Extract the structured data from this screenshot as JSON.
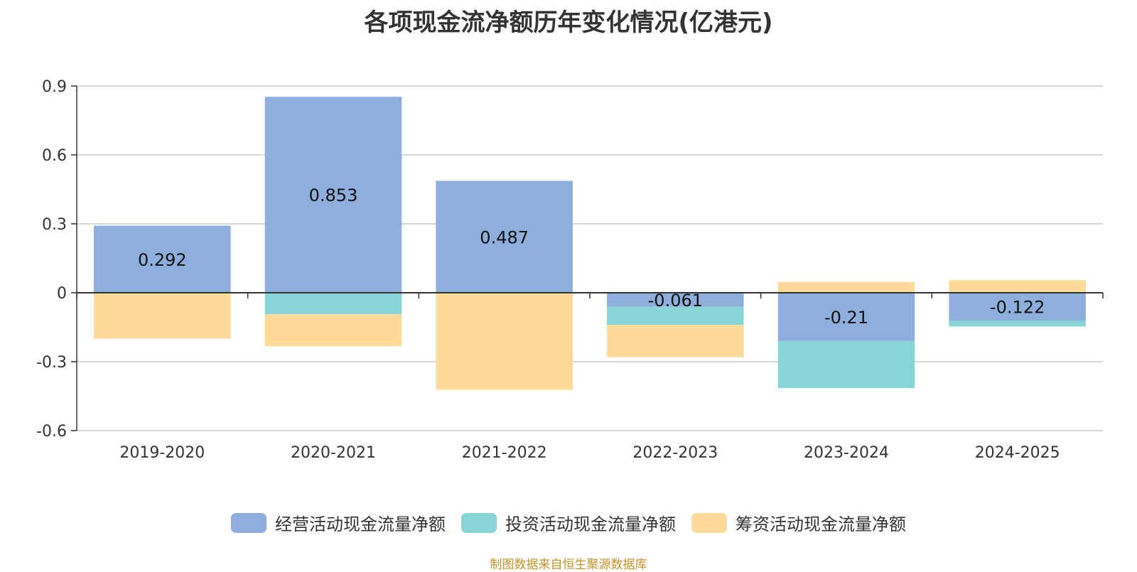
{
  "chart_data": {
    "type": "bar",
    "stacked": true,
    "title": "各项现金流净额历年变化情况(亿港元)",
    "categories": [
      "2019-2020",
      "2020-2021",
      "2021-2022",
      "2022-2023",
      "2023-2024",
      "2024-2025"
    ],
    "series": [
      {
        "name": "经营活动现金流量净额",
        "color": "#8eaedc",
        "values": [
          0.292,
          0.853,
          0.487,
          -0.061,
          -0.21,
          -0.122
        ],
        "labels": [
          "0.292",
          "0.853",
          "0.487",
          "-0.061",
          "-0.21",
          "-0.122"
        ]
      },
      {
        "name": "投资活动现金流量净额",
        "color": "#88d5d8",
        "values": [
          0,
          -0.093,
          -0.003,
          -0.079,
          -0.205,
          -0.025
        ]
      },
      {
        "name": "筹资活动现金流量净额",
        "color": "#fdd99a",
        "values": [
          -0.2,
          -0.14,
          -0.42,
          -0.14,
          0.047,
          0.055
        ]
      }
    ],
    "yticks": [
      "0.9",
      "0.6",
      "0.3",
      "0",
      "-0.3",
      "-0.6"
    ],
    "ylim": [
      -0.6,
      0.9
    ],
    "grid": true,
    "legend_position": "bottom"
  },
  "source": "制图数据来自恒生聚源数据库"
}
